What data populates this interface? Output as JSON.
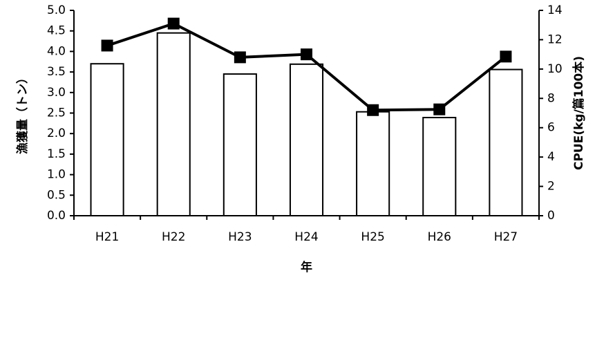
{
  "chart_data": {
    "type": "bar",
    "categories": [
      "H21",
      "H22",
      "H23",
      "H24",
      "H25",
      "H26",
      "H27"
    ],
    "series": [
      {
        "type": "bar",
        "axis": "left",
        "values": [
          3.7,
          4.45,
          3.45,
          3.69,
          2.53,
          2.39,
          3.56
        ]
      },
      {
        "type": "line",
        "axis": "right",
        "values": [
          11.6,
          13.1,
          10.8,
          11.0,
          7.2,
          7.25,
          10.85
        ]
      }
    ],
    "xlabel": "年",
    "ylabel_left": "漁獲量（トン）",
    "ylabel_right": "CPUE(kg/篇100本)",
    "ylim_left": [
      0,
      5
    ],
    "ylim_right": [
      0,
      14
    ],
    "yticks_left": [
      "0.0",
      "0.5",
      "1.0",
      "1.5",
      "2.0",
      "2.5",
      "3.0",
      "3.5",
      "4.0",
      "4.5",
      "5.0"
    ],
    "yticks_right": [
      "0",
      "2",
      "4",
      "6",
      "8",
      "10",
      "12",
      "14"
    ],
    "grid": false,
    "legend": "none",
    "colors": {
      "bar_fill": "#ffffff",
      "bar_stroke": "#000000",
      "line": "#000000",
      "marker": "#000000"
    }
  }
}
